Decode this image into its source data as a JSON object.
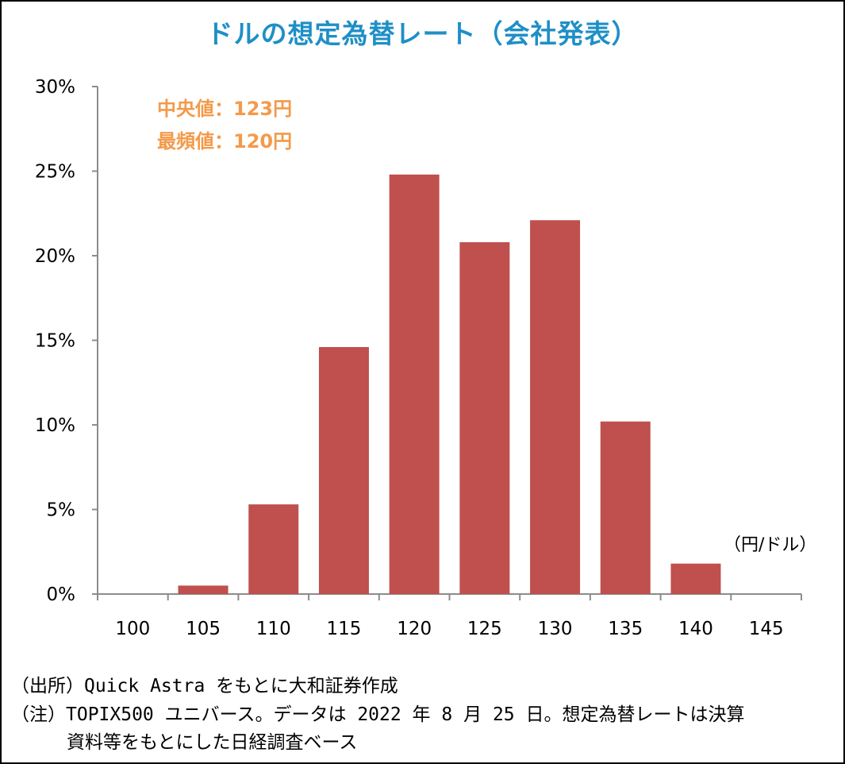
{
  "chart_data": {
    "type": "bar",
    "title": "ドルの想定為替レート（会社発表）",
    "categories": [
      "100",
      "105",
      "110",
      "115",
      "120",
      "125",
      "130",
      "135",
      "140",
      "145"
    ],
    "values": [
      0,
      0.5,
      5.3,
      14.6,
      24.8,
      20.8,
      22.1,
      10.2,
      1.8,
      0
    ],
    "ylim": [
      0,
      30
    ],
    "yticks": [
      0,
      5,
      10,
      15,
      20,
      25,
      30
    ],
    "ytick_labels": [
      "0%",
      "5%",
      "10%",
      "15%",
      "20%",
      "25%",
      "30%"
    ],
    "unit_label": "（円/ドル）",
    "annotations": [
      "中央値：123円",
      "最頻値：120円"
    ],
    "bar_color": "#c0504d",
    "grid": false
  },
  "notes": {
    "source": "（出所）Quick Astra をもとに大和証券作成",
    "note1": "（注）TOPIX500 ユニバース。データは 2022 年 8 月 25 日。想定為替レートは決算",
    "note2": "資料等をもとにした日経調査ベース"
  },
  "colors": {
    "title": "#1e8fc6",
    "annotation": "#f39a4a"
  }
}
